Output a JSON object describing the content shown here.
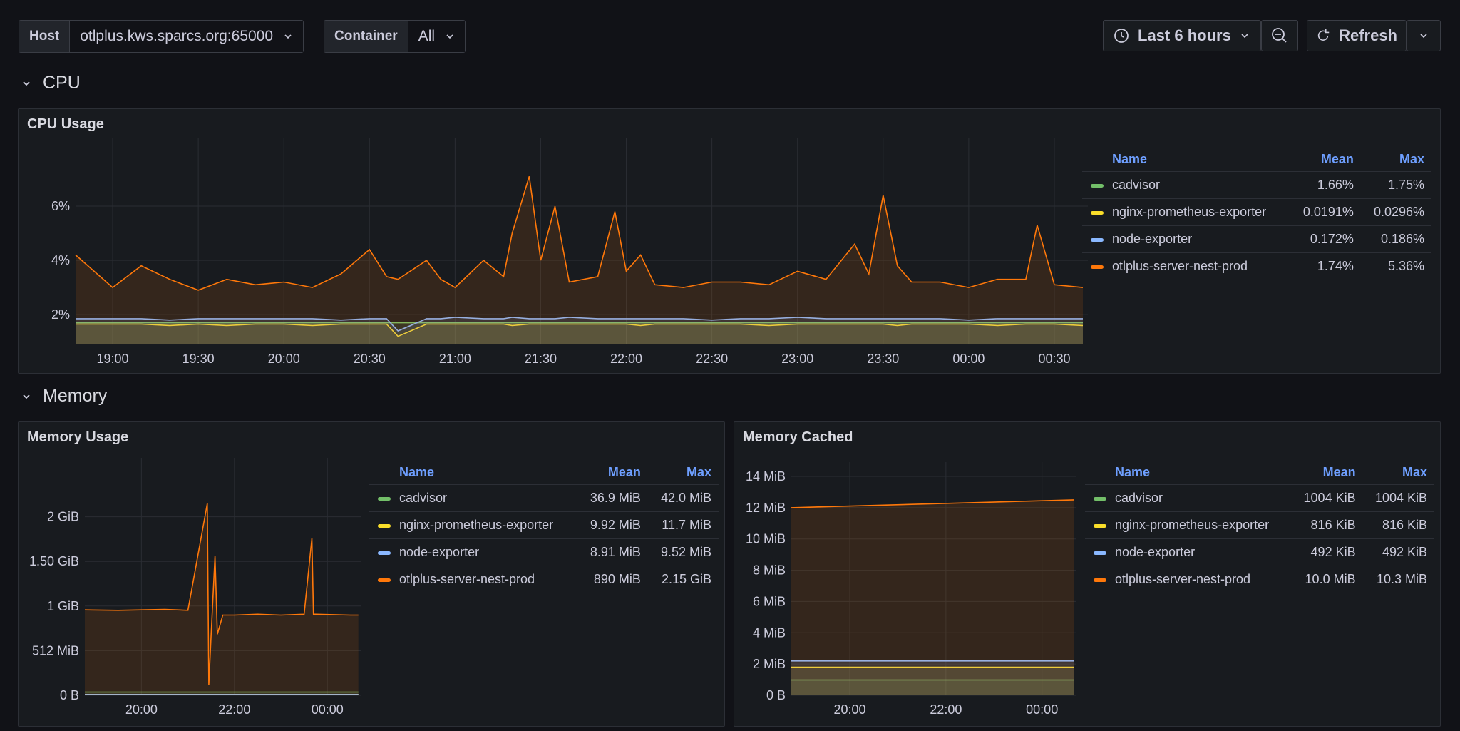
{
  "variables": {
    "host_label": "Host",
    "host_value": "otlplus.kws.sparcs.org:65000",
    "container_label": "Container",
    "container_value": "All"
  },
  "toolbar": {
    "time_range": "Last 6 hours",
    "refresh_label": "Refresh",
    "clock_icon": "clock-icon",
    "zoom_out_icon": "zoom-out-icon",
    "refresh_icon": "refresh-icon"
  },
  "sections": {
    "cpu": "CPU",
    "memory": "Memory"
  },
  "colors": {
    "cadvisor": "#73bf69",
    "nginx": "#fade2a",
    "node": "#8ab8ff",
    "otlplus": "#ff780a",
    "accent": "#6e9fff"
  },
  "legend_headers": {
    "name": "Name",
    "mean": "Mean",
    "max": "Max"
  },
  "cpu_panel": {
    "title": "CPU Usage",
    "legend": [
      {
        "name": "cadvisor",
        "mean": "1.66%",
        "max": "1.75%"
      },
      {
        "name": "nginx-prometheus-exporter",
        "mean": "0.0191%",
        "max": "0.0296%"
      },
      {
        "name": "node-exporter",
        "mean": "0.172%",
        "max": "0.186%"
      },
      {
        "name": "otlplus-server-nest-prod",
        "mean": "1.74%",
        "max": "5.36%"
      }
    ]
  },
  "memory_panel": {
    "title": "Memory Usage",
    "legend": [
      {
        "name": "cadvisor",
        "mean": "36.9 MiB",
        "max": "42.0 MiB"
      },
      {
        "name": "nginx-prometheus-exporter",
        "mean": "9.92 MiB",
        "max": "11.7 MiB"
      },
      {
        "name": "node-exporter",
        "mean": "8.91 MiB",
        "max": "9.52 MiB"
      },
      {
        "name": "otlplus-server-nest-prod",
        "mean": "890 MiB",
        "max": "2.15 GiB"
      }
    ]
  },
  "cached_panel": {
    "title": "Memory Cached",
    "legend": [
      {
        "name": "cadvisor",
        "mean": "1004 KiB",
        "max": "1004 KiB"
      },
      {
        "name": "nginx-prometheus-exporter",
        "mean": "816 KiB",
        "max": "816 KiB"
      },
      {
        "name": "node-exporter",
        "mean": "492 KiB",
        "max": "492 KiB"
      },
      {
        "name": "otlplus-server-nest-prod",
        "mean": "10.0 MiB",
        "max": "10.3 MiB"
      }
    ]
  },
  "chart_data": [
    {
      "type": "line",
      "title": "CPU Usage",
      "xlabel": "",
      "ylabel": "",
      "x_ticks": [
        "19:00",
        "19:30",
        "20:00",
        "20:30",
        "21:00",
        "21:30",
        "22:00",
        "22:30",
        "23:00",
        "23:30",
        "00:00",
        "00:30"
      ],
      "y_ticks": [
        "2%",
        "4%",
        "6%"
      ],
      "ylim": [
        0.9,
        8
      ],
      "x": [
        "18:47",
        "19:00",
        "19:10",
        "19:20",
        "19:30",
        "19:40",
        "19:50",
        "20:00",
        "20:10",
        "20:20",
        "20:30",
        "20:36",
        "20:40",
        "20:50",
        "20:55",
        "21:00",
        "21:10",
        "21:17",
        "21:20",
        "21:26",
        "21:30",
        "21:35",
        "21:40",
        "21:50",
        "21:56",
        "22:00",
        "22:05",
        "22:10",
        "22:20",
        "22:30",
        "22:40",
        "22:50",
        "23:00",
        "23:10",
        "23:20",
        "23:25",
        "23:30",
        "23:35",
        "23:40",
        "23:50",
        "00:00",
        "00:10",
        "00:20",
        "00:24",
        "00:30",
        "00:40"
      ],
      "series": [
        {
          "name": "cadvisor",
          "values": [
            1.7,
            1.7,
            1.7,
            1.7,
            1.7,
            1.7,
            1.7,
            1.7,
            1.7,
            1.7,
            1.7,
            1.7,
            1.7,
            1.7,
            1.7,
            1.7,
            1.7,
            1.7,
            1.7,
            1.7,
            1.7,
            1.7,
            1.7,
            1.7,
            1.7,
            1.7,
            1.7,
            1.7,
            1.7,
            1.7,
            1.7,
            1.7,
            1.7,
            1.7,
            1.7,
            1.7,
            1.7,
            1.7,
            1.7,
            1.7,
            1.7,
            1.7,
            1.7,
            1.7,
            1.7,
            1.7
          ]
        },
        {
          "name": "nginx-prometheus-exporter",
          "values": [
            1.65,
            1.65,
            1.65,
            1.6,
            1.65,
            1.6,
            1.65,
            1.65,
            1.6,
            1.65,
            1.65,
            1.65,
            1.2,
            1.65,
            1.65,
            1.65,
            1.65,
            1.65,
            1.6,
            1.65,
            1.65,
            1.65,
            1.65,
            1.65,
            1.65,
            1.65,
            1.6,
            1.65,
            1.65,
            1.65,
            1.65,
            1.6,
            1.65,
            1.65,
            1.65,
            1.65,
            1.65,
            1.6,
            1.65,
            1.65,
            1.65,
            1.6,
            1.65,
            1.65,
            1.65,
            1.6
          ]
        },
        {
          "name": "node-exporter",
          "values": [
            1.85,
            1.85,
            1.85,
            1.8,
            1.85,
            1.85,
            1.85,
            1.85,
            1.85,
            1.8,
            1.85,
            1.85,
            1.4,
            1.85,
            1.85,
            1.9,
            1.85,
            1.85,
            1.9,
            1.85,
            1.85,
            1.85,
            1.9,
            1.85,
            1.85,
            1.85,
            1.85,
            1.85,
            1.85,
            1.8,
            1.85,
            1.85,
            1.9,
            1.85,
            1.85,
            1.85,
            1.85,
            1.85,
            1.85,
            1.85,
            1.8,
            1.85,
            1.85,
            1.85,
            1.85,
            1.85
          ]
        },
        {
          "name": "otlplus-server-nest-prod",
          "values": [
            4.2,
            3.0,
            3.8,
            3.3,
            2.9,
            3.3,
            3.1,
            3.2,
            3.0,
            3.5,
            4.4,
            3.4,
            3.3,
            4.0,
            3.3,
            3.0,
            4.0,
            3.4,
            5.0,
            7.1,
            4.0,
            6.0,
            3.2,
            3.4,
            5.8,
            3.6,
            4.2,
            3.1,
            3.0,
            3.2,
            3.2,
            3.1,
            3.6,
            3.3,
            4.6,
            3.5,
            6.4,
            3.8,
            3.2,
            3.2,
            3.0,
            3.3,
            3.3,
            5.3,
            3.1,
            3.0
          ]
        }
      ]
    },
    {
      "type": "line",
      "title": "Memory Usage",
      "xlabel": "",
      "ylabel": "",
      "x_ticks": [
        "20:00",
        "22:00",
        "00:00"
      ],
      "y_ticks": [
        "0 B",
        "512 MiB",
        "1 GiB",
        "1.50 GiB",
        "2 GiB"
      ],
      "ylim_mib": [
        0,
        2560
      ],
      "x": [
        "18:47",
        "19:30",
        "20:30",
        "21:00",
        "21:25",
        "21:27",
        "21:30",
        "21:35",
        "21:38",
        "21:45",
        "22:00",
        "22:30",
        "23:00",
        "23:30",
        "23:40",
        "23:42",
        "23:45",
        "00:30",
        "00:40"
      ],
      "series": [
        {
          "name": "cadvisor",
          "values": [
            37,
            37,
            37,
            37,
            37,
            37,
            37,
            37,
            37,
            37,
            37,
            37,
            37,
            37,
            37,
            37,
            37,
            37,
            37
          ]
        },
        {
          "name": "nginx-prometheus-exporter",
          "values": [
            10,
            10,
            10,
            10,
            10,
            10,
            10,
            10,
            10,
            10,
            10,
            10,
            10,
            10,
            10,
            10,
            10,
            10,
            10
          ]
        },
        {
          "name": "node-exporter",
          "values": [
            9,
            9,
            9,
            9,
            9,
            9,
            9,
            9,
            9,
            9,
            9,
            9,
            9,
            9,
            9,
            9,
            9,
            9,
            9
          ]
        },
        {
          "name": "otlplus-server-nest-prod",
          "values": [
            980,
            975,
            985,
            975,
            2200,
            120,
            700,
            1600,
            700,
            920,
            920,
            930,
            920,
            930,
            1800,
            930,
            930,
            920,
            920
          ]
        }
      ]
    },
    {
      "type": "line",
      "title": "Memory Cached",
      "xlabel": "",
      "ylabel": "",
      "x_ticks": [
        "20:00",
        "22:00",
        "00:00"
      ],
      "y_ticks": [
        "0 B",
        "2 MiB",
        "4 MiB",
        "6 MiB",
        "8 MiB",
        "10 MiB",
        "12 MiB",
        "14 MiB"
      ],
      "ylim_mib": [
        0,
        14
      ],
      "x": [
        "18:47",
        "00:40"
      ],
      "series": [
        {
          "name": "cadvisor",
          "values": [
            0.98,
            0.98
          ]
        },
        {
          "name": "nginx-prometheus-exporter",
          "values": [
            1.8,
            1.8
          ]
        },
        {
          "name": "node-exporter",
          "values": [
            2.2,
            2.2
          ]
        },
        {
          "name": "otlplus-server-nest-prod",
          "values": [
            12.0,
            12.5
          ]
        }
      ]
    }
  ]
}
